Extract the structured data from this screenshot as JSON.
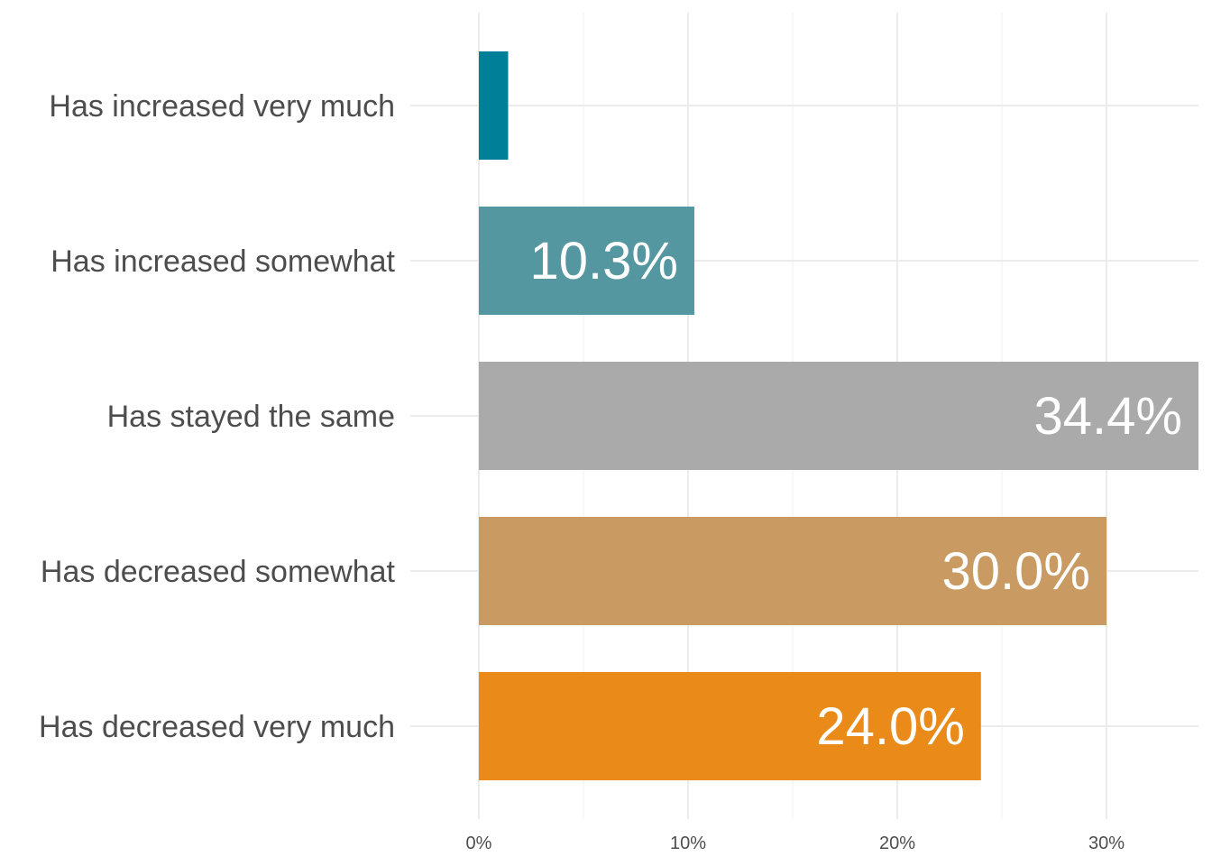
{
  "chart_data": {
    "type": "bar",
    "orientation": "horizontal",
    "categories": [
      "Has increased very much",
      "Has increased somewhat",
      "Has stayed the same",
      "Has decreased somewhat",
      "Has decreased very much"
    ],
    "values": [
      1.4,
      10.3,
      34.4,
      30.0,
      24.0
    ],
    "data_labels": [
      "",
      "10.3%",
      "34.4%",
      "30.0%",
      "24.0%"
    ],
    "colors": [
      "#008098",
      "#5597A1",
      "#AAAAAA",
      "#C99A61",
      "#E98A19"
    ],
    "x_ticks": [
      {
        "value": 0,
        "label": "0%"
      },
      {
        "value": 10,
        "label": "10%"
      },
      {
        "value": 20,
        "label": "20%"
      },
      {
        "value": 30,
        "label": "30%"
      }
    ],
    "xlim": [
      -3.5,
      34.4
    ],
    "grid": true,
    "legend": "none",
    "title": "",
    "xlabel": "",
    "ylabel": ""
  }
}
